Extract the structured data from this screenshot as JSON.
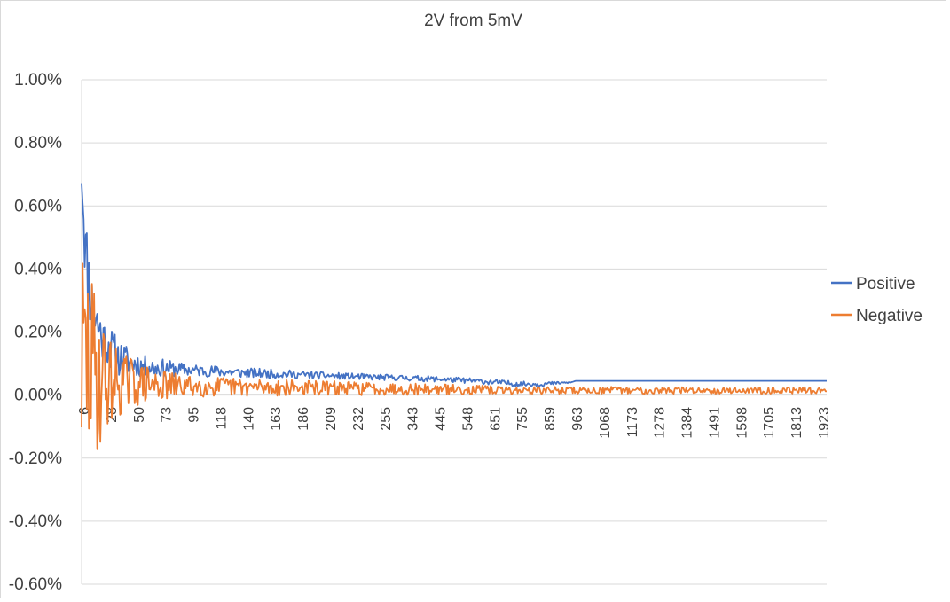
{
  "chart_data": {
    "type": "line",
    "title": "2V from 5mV",
    "xlabel": "",
    "ylabel": "",
    "ylim": [
      -0.006,
      0.01
    ],
    "ytick_step": 0.002,
    "ytick_labels": [
      "1.00%",
      "0.80%",
      "0.60%",
      "0.40%",
      "0.20%",
      "0.00%",
      "-0.20%",
      "-0.40%",
      "-0.60%"
    ],
    "xtick_labels": [
      "6",
      "28",
      "50",
      "73",
      "95",
      "118",
      "140",
      "163",
      "186",
      "209",
      "232",
      "255",
      "343",
      "445",
      "548",
      "651",
      "755",
      "859",
      "963",
      "1068",
      "1173",
      "1278",
      "1384",
      "1491",
      "1598",
      "1705",
      "1813",
      "1923"
    ],
    "grid": true,
    "legend_position": "right",
    "series": [
      {
        "name": "Positive",
        "color": "#4472c4",
        "trend": [
          [
            0,
            0.0075
          ],
          [
            4,
            0.0045
          ],
          [
            10,
            0.0028
          ],
          [
            20,
            0.0018
          ],
          [
            35,
            0.0012
          ],
          [
            60,
            0.0009
          ],
          [
            100,
            0.0008
          ],
          [
            160,
            0.0007
          ],
          [
            250,
            0.0006
          ],
          [
            350,
            0.0005
          ],
          [
            400,
            0.0004
          ],
          [
            420,
            0.00035
          ],
          [
            440,
            0.00035
          ],
          [
            470,
            0.0004
          ],
          [
            475,
            0.00045
          ],
          [
            716,
            0.00045
          ]
        ],
        "spread": [
          [
            0,
            0.0015
          ],
          [
            20,
            0.0008
          ],
          [
            50,
            0.0004
          ],
          [
            100,
            0.0002
          ],
          [
            250,
            0.0001
          ],
          [
            440,
            8e-05
          ],
          [
            470,
            2e-05
          ],
          [
            475,
            0
          ],
          [
            716,
            0
          ]
        ],
        "seed": 11
      },
      {
        "name": "Negative",
        "color": "#ed7d31",
        "trend": [
          [
            0,
            0.001
          ],
          [
            10,
            0.0008
          ],
          [
            20,
            0.0005
          ],
          [
            40,
            0.0004
          ],
          [
            80,
            0.0003
          ],
          [
            160,
            0.00025
          ],
          [
            300,
            0.0002
          ],
          [
            420,
            0.00015
          ],
          [
            716,
            0.00015
          ]
        ],
        "spread": [
          [
            0,
            0.004
          ],
          [
            15,
            0.0025
          ],
          [
            30,
            0.0012
          ],
          [
            60,
            0.0006
          ],
          [
            100,
            0.00035
          ],
          [
            200,
            0.00025
          ],
          [
            300,
            0.0002
          ],
          [
            420,
            0.00012
          ],
          [
            716,
            0.0001
          ]
        ],
        "seed": 29
      }
    ],
    "n_points": 717
  }
}
